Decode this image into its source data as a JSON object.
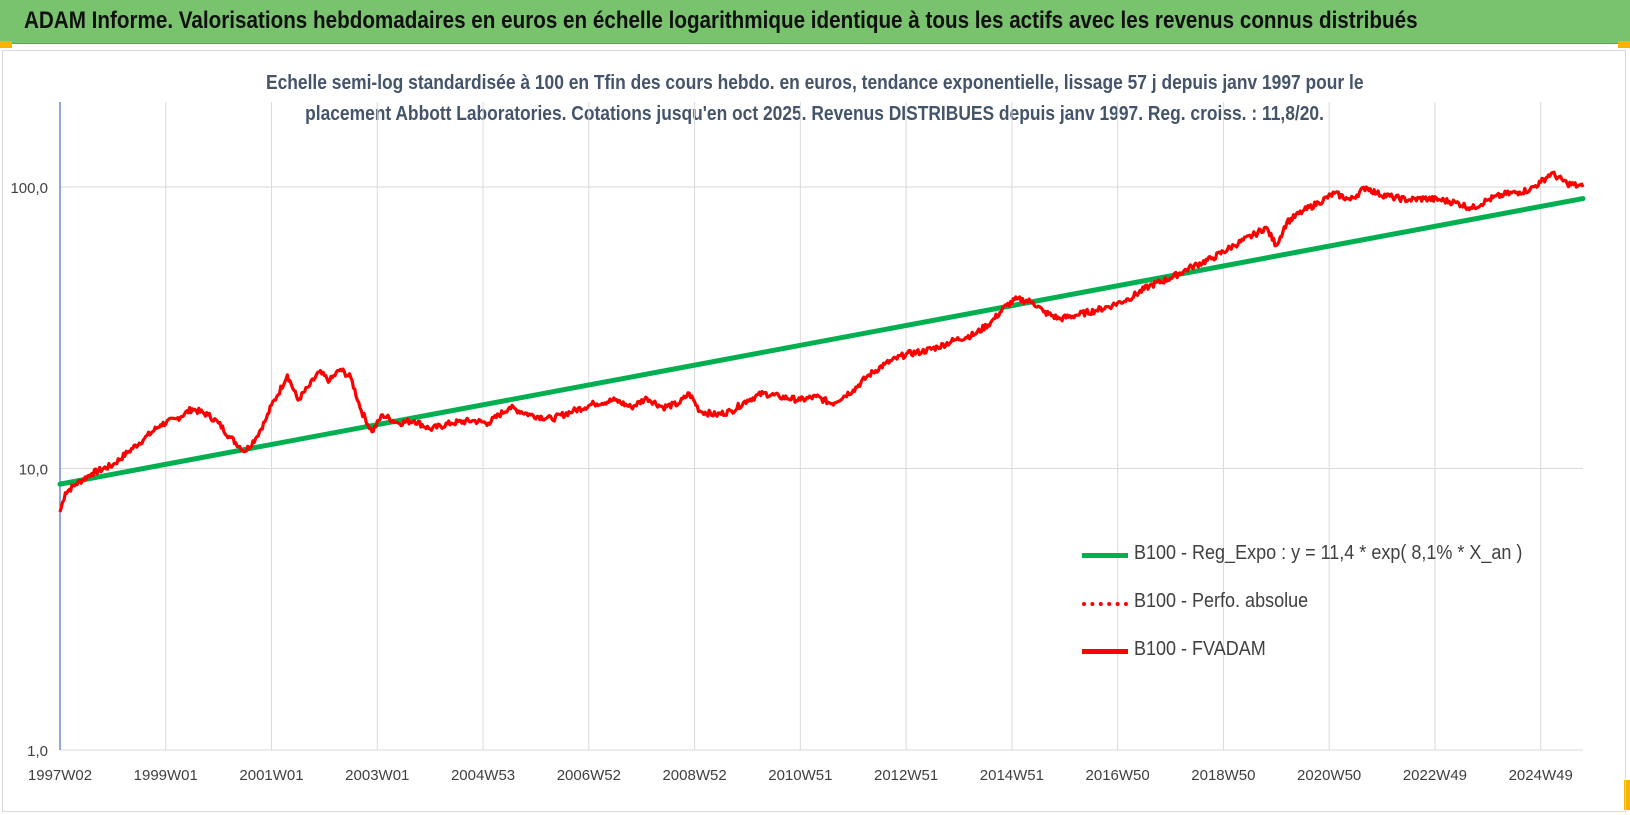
{
  "header": {
    "title": "ADAM Informe. Valorisations hebdomadaires en euros en échelle logarithmique identique à tous les actifs avec les revenus connus distribués"
  },
  "colors": {
    "header_bg": "#79c26e",
    "trend": "#00b050",
    "fvadam": "#ff0000",
    "grid": "#d9d9d9",
    "axis": "#4472c4"
  },
  "chart_data": {
    "type": "line",
    "title_line1": "Echelle semi-log standardisée à 100 en Tfin des cours hebdo. en euros, tendance exponentielle, lissage 57 j depuis janv 1997 pour le",
    "title_line2": "placement Abbott Laboratories. Cotations jusqu'en oct 2025. Revenus DISTRIBUES depuis janv 1997. Reg. croiss. : 11,8/20.",
    "y_scale": "log",
    "ylim": [
      1,
      100
    ],
    "xlim": [
      1997.0,
      2025.8
    ],
    "y_ticks": [
      1,
      10,
      100
    ],
    "y_tick_labels": [
      "1,0",
      "10,0",
      "100,0"
    ],
    "x_ticks": [
      {
        "label": "1997W02",
        "x": 1997.0
      },
      {
        "label": "1999W01",
        "x": 1999.0
      },
      {
        "label": "2001W01",
        "x": 2001.0
      },
      {
        "label": "2003W01",
        "x": 2003.0
      },
      {
        "label": "2004W53",
        "x": 2005.0
      },
      {
        "label": "2006W52",
        "x": 2007.0
      },
      {
        "label": "2008W52",
        "x": 2009.0
      },
      {
        "label": "2010W51",
        "x": 2011.0
      },
      {
        "label": "2012W51",
        "x": 2013.0
      },
      {
        "label": "2014W51",
        "x": 2015.0
      },
      {
        "label": "2016W50",
        "x": 2017.0
      },
      {
        "label": "2018W50",
        "x": 2019.0
      },
      {
        "label": "2020W50",
        "x": 2021.0
      },
      {
        "label": "2022W49",
        "x": 2023.0
      },
      {
        "label": "2024W49",
        "x": 2025.0
      }
    ],
    "legend_position": "bottom-right",
    "grid": true,
    "series": [
      {
        "name": "B100 - Reg_Expo : y = 11,4 * exp( 8,1% *  X_an )",
        "style": "solid",
        "x": [
          1997.0,
          2025.8
        ],
        "y": [
          8.8,
          91
        ]
      },
      {
        "name": "B100 - Perfo. absolue",
        "style": "dotted",
        "x": [],
        "y": []
      },
      {
        "name": "B100 - FVADAM",
        "style": "solid",
        "x": [
          1997.0,
          1997.1,
          1997.3,
          1997.6,
          1998.0,
          1998.3,
          1998.6,
          1998.9,
          1999.2,
          1999.5,
          1999.8,
          2000.0,
          2000.2,
          2000.5,
          2000.7,
          2000.9,
          2001.0,
          2001.1,
          2001.3,
          2001.5,
          2001.7,
          2001.9,
          2002.1,
          2002.3,
          2002.5,
          2002.7,
          2002.9,
          2003.1,
          2003.4,
          2003.7,
          2004.0,
          2004.4,
          2004.8,
          2005.1,
          2005.5,
          2005.9,
          2006.3,
          2006.7,
          2007.1,
          2007.5,
          2007.8,
          2008.1,
          2008.4,
          2008.7,
          2008.9,
          2009.1,
          2009.4,
          2009.7,
          2010.0,
          2010.3,
          2010.6,
          2011.0,
          2011.3,
          2011.6,
          2012.0,
          2012.3,
          2012.6,
          2013.0,
          2013.3,
          2013.6,
          2013.9,
          2014.3,
          2014.6,
          2014.9,
          2015.1,
          2015.4,
          2015.6,
          2015.9,
          2016.2,
          2016.6,
          2016.9,
          2017.2,
          2017.6,
          2018.0,
          2018.4,
          2018.8,
          2019.2,
          2019.6,
          2019.8,
          2020.0,
          2020.2,
          2020.5,
          2020.8,
          2021.1,
          2021.4,
          2021.7,
          2021.9,
          2022.2,
          2022.5,
          2022.8,
          2023.1,
          2023.4,
          2023.7,
          2024.0,
          2024.3,
          2024.6,
          2024.8,
          2025.0,
          2025.2,
          2025.5,
          2025.8
        ],
        "y": [
          7.0,
          8.2,
          8.8,
          9.6,
          10.3,
          11.5,
          12.8,
          14.3,
          15.0,
          16.3,
          15.5,
          14.5,
          13.0,
          11.5,
          12.8,
          15.0,
          16.8,
          18.0,
          21.5,
          17.5,
          19.5,
          22.0,
          20.5,
          22.5,
          21.0,
          16.0,
          13.5,
          15.5,
          14.5,
          14.8,
          13.8,
          14.5,
          14.8,
          14.5,
          16.5,
          15.5,
          15.0,
          16.0,
          17.0,
          17.5,
          16.5,
          17.8,
          16.5,
          17.0,
          18.5,
          16.0,
          15.5,
          16.0,
          17.5,
          18.5,
          18.0,
          17.5,
          18.0,
          17.0,
          19.0,
          21.5,
          23.5,
          25.5,
          26.0,
          27.0,
          28.5,
          30.0,
          33.0,
          38.0,
          40.0,
          39.0,
          36.0,
          34.0,
          35.0,
          36.5,
          38.0,
          40.0,
          44.5,
          47.5,
          52.0,
          56.0,
          62.0,
          68.0,
          72.0,
          62.0,
          75.0,
          82.0,
          88.0,
          95.0,
          90.0,
          100.0,
          95.0,
          92.0,
          90.0,
          91.0,
          90.0,
          88.0,
          84.0,
          90.0,
          94.0,
          96.0,
          98.0,
          104.0,
          112.0,
          103.0,
          100.0
        ]
      }
    ]
  }
}
